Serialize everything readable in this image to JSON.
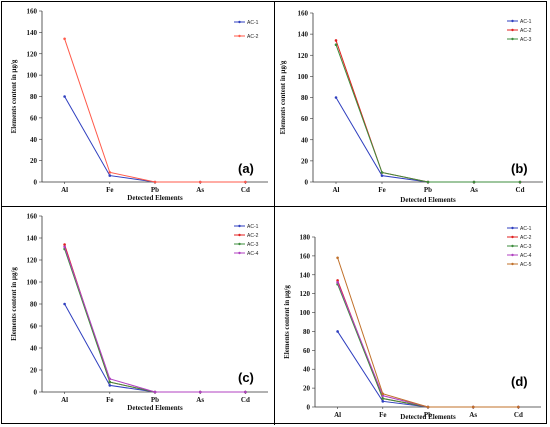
{
  "chart_data": [
    {
      "type": "line",
      "panel_label": "(a)",
      "categories": [
        "Al",
        "Fe",
        "Pb",
        "As",
        "Cd"
      ],
      "ylabel": "Elements content in µg/g",
      "xlabel": "Detected Elements",
      "ylim": [
        0,
        160
      ],
      "yticks": [
        0,
        20,
        40,
        60,
        80,
        100,
        120,
        140,
        160
      ],
      "series": [
        {
          "name": "AC-1",
          "color": "#2f3fbf",
          "values": [
            80,
            6,
            0,
            0,
            0
          ]
        },
        {
          "name": "AC-2",
          "color": "#ff5a4a",
          "values": [
            134,
            9,
            0,
            0,
            0
          ]
        }
      ]
    },
    {
      "type": "line",
      "panel_label": "(b)",
      "categories": [
        "Al",
        "Fe",
        "Pb",
        "As",
        "Cd"
      ],
      "ylabel": "Elements content in µg/g",
      "xlabel": "Detected Elements",
      "ylim": [
        0,
        160
      ],
      "yticks": [
        0,
        20,
        40,
        60,
        80,
        100,
        120,
        140,
        160
      ],
      "series": [
        {
          "name": "AC-1",
          "color": "#2f3fbf",
          "values": [
            80,
            6,
            0,
            0,
            0
          ]
        },
        {
          "name": "AC-2",
          "color": "#e02020",
          "values": [
            134,
            9,
            0,
            0,
            0
          ]
        },
        {
          "name": "AC-3",
          "color": "#3c8c3c",
          "values": [
            130,
            9,
            0,
            0,
            0
          ]
        }
      ]
    },
    {
      "type": "line",
      "panel_label": "(c)",
      "categories": [
        "Al",
        "Fe",
        "Pb",
        "As",
        "Cd"
      ],
      "ylabel": "Elements content in µg/g",
      "xlabel": "Detected Elements",
      "ylim": [
        0,
        160
      ],
      "yticks": [
        0,
        20,
        40,
        60,
        80,
        100,
        120,
        140,
        160
      ],
      "series": [
        {
          "name": "AC-1",
          "color": "#2f3fbf",
          "values": [
            80,
            6,
            0,
            0,
            0
          ]
        },
        {
          "name": "AC-2",
          "color": "#e02020",
          "values": [
            134,
            9,
            0,
            0,
            0
          ]
        },
        {
          "name": "AC-3",
          "color": "#3c8c3c",
          "values": [
            130,
            9,
            0,
            0,
            0
          ]
        },
        {
          "name": "AC-4",
          "color": "#b040c0",
          "values": [
            132,
            12,
            0,
            0,
            0
          ]
        }
      ]
    },
    {
      "type": "line",
      "panel_label": "(d)",
      "categories": [
        "Al",
        "Fe",
        "Pb",
        "As",
        "Cd"
      ],
      "ylabel": "Elements content in µg/g",
      "xlabel": "Detected Elements",
      "ylim": [
        0,
        180
      ],
      "yticks": [
        0,
        20,
        40,
        60,
        80,
        100,
        120,
        140,
        160,
        180
      ],
      "series": [
        {
          "name": "AC-1",
          "color": "#2f3fbf",
          "values": [
            80,
            6,
            0,
            0,
            0
          ]
        },
        {
          "name": "AC-2",
          "color": "#e02020",
          "values": [
            134,
            9,
            0,
            0,
            0
          ]
        },
        {
          "name": "AC-3",
          "color": "#3c8c3c",
          "values": [
            130,
            9,
            0,
            0,
            0
          ]
        },
        {
          "name": "AC-4",
          "color": "#b040c0",
          "values": [
            132,
            12,
            0,
            0,
            0
          ]
        },
        {
          "name": "AC-5",
          "color": "#c0702a",
          "values": [
            158,
            14,
            0,
            0,
            0
          ]
        }
      ]
    }
  ]
}
